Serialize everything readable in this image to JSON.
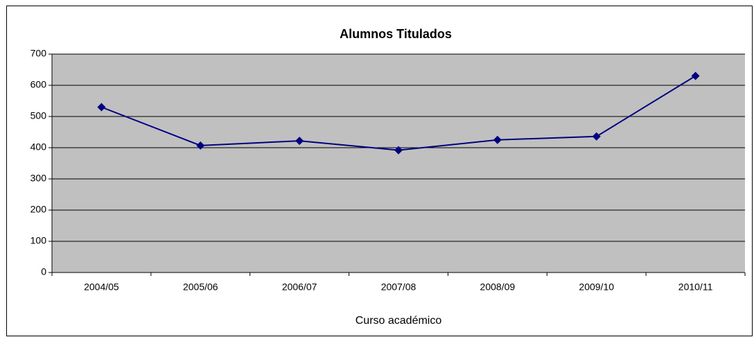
{
  "chart_data": {
    "type": "line",
    "title": "Alumnos Titulados",
    "x_label": "Curso académico",
    "categories": [
      "2004/05",
      "2005/06",
      "2006/07",
      "2007/08",
      "2008/09",
      "2009/10",
      "2010/11"
    ],
    "values": [
      530,
      407,
      422,
      392,
      425,
      436,
      630
    ],
    "color": "#000080",
    "plot_background": "#c0c0c0",
    "ylim": [
      0,
      700
    ],
    "yticks": [
      0,
      100,
      200,
      300,
      400,
      500,
      600,
      700
    ],
    "grid": true
  }
}
